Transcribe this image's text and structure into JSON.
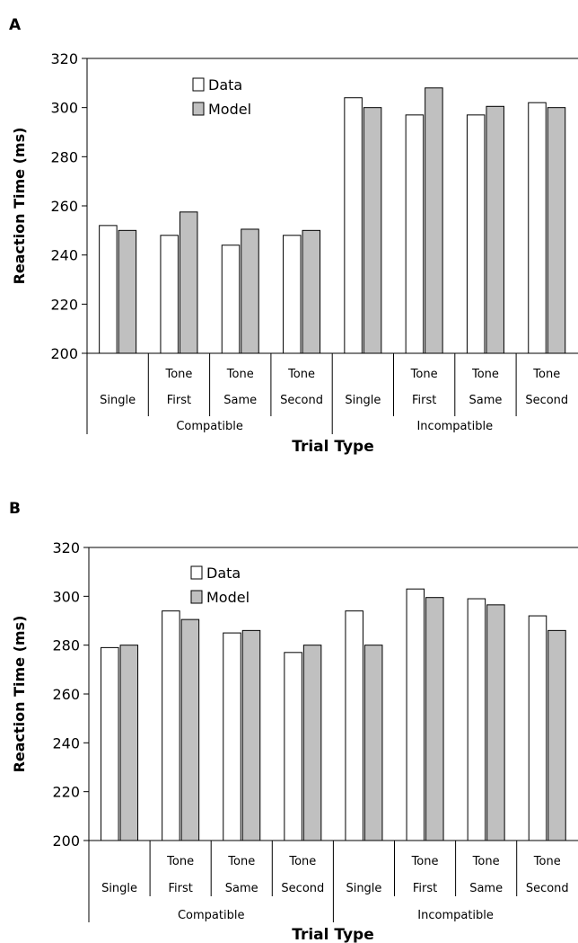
{
  "chart_data": [
    {
      "type": "bar",
      "panel": "A",
      "ylabel": "Reaction Time (ms)",
      "xlabel": "Trial Type",
      "ylim": [
        200,
        320
      ],
      "yticks": [
        200,
        220,
        240,
        260,
        280,
        300,
        320
      ],
      "categories": [
        {
          "line1": "",
          "line2": "Single"
        },
        {
          "line1": "Tone",
          "line2": "First"
        },
        {
          "line1": "Tone",
          "line2": "Same"
        },
        {
          "line1": "Tone",
          "line2": "Second"
        },
        {
          "line1": "",
          "line2": "Single"
        },
        {
          "line1": "Tone",
          "line2": "First"
        },
        {
          "line1": "Tone",
          "line2": "Same"
        },
        {
          "line1": "Tone",
          "line2": "Second"
        }
      ],
      "groups": [
        "Compatible",
        "Incompatible"
      ],
      "series": [
        {
          "name": "Data",
          "color": "#ffffff",
          "values": [
            252,
            248,
            244,
            248,
            304,
            297,
            297,
            302
          ]
        },
        {
          "name": "Model",
          "color": "#c0c0c0",
          "values": [
            250,
            257.5,
            250.5,
            250,
            300,
            308,
            300.5,
            300
          ]
        }
      ],
      "legend": "top-left"
    },
    {
      "type": "bar",
      "panel": "B",
      "ylabel": "Reaction Time (ms)",
      "xlabel": "Trial Type",
      "ylim": [
        200,
        320
      ],
      "yticks": [
        200,
        220,
        240,
        260,
        280,
        300,
        320
      ],
      "categories": [
        {
          "line1": "",
          "line2": "Single"
        },
        {
          "line1": "Tone",
          "line2": "First"
        },
        {
          "line1": "Tone",
          "line2": "Same"
        },
        {
          "line1": "Tone",
          "line2": "Second"
        },
        {
          "line1": "",
          "line2": "Single"
        },
        {
          "line1": "Tone",
          "line2": "First"
        },
        {
          "line1": "Tone",
          "line2": "Same"
        },
        {
          "line1": "Tone",
          "line2": "Second"
        }
      ],
      "groups": [
        "Compatible",
        "Incompatible"
      ],
      "series": [
        {
          "name": "Data",
          "color": "#ffffff",
          "values": [
            279,
            294,
            285,
            277,
            294,
            303,
            299,
            292
          ]
        },
        {
          "name": "Model",
          "color": "#c0c0c0",
          "values": [
            280,
            290.5,
            286,
            280,
            280,
            299.5,
            296.5,
            286
          ]
        }
      ],
      "legend": "top-left"
    }
  ]
}
